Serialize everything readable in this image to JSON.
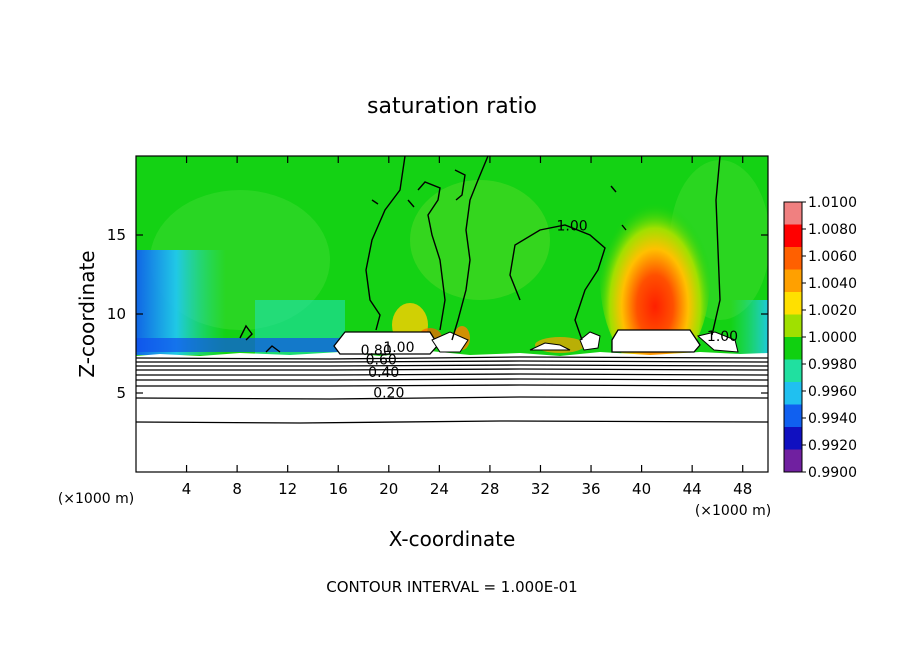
{
  "chart_data": {
    "type": "heatmap",
    "title": "saturation ratio",
    "xlabel": "X-coordinate",
    "ylabel": "Z-coordinate",
    "x_unit_left": "(×1000 m)",
    "x_unit_right": "(×1000 m)",
    "footer": "CONTOUR INTERVAL = 1.000E-01",
    "xlim": [
      0,
      50
    ],
    "ylim": [
      0,
      20
    ],
    "x_ticks": [
      4,
      8,
      12,
      16,
      20,
      24,
      28,
      32,
      36,
      40,
      44,
      48
    ],
    "y_ticks": [
      5,
      10,
      15
    ],
    "colorbar": {
      "ticks": [
        "1.0100",
        "1.0080",
        "1.0060",
        "1.0040",
        "1.0020",
        "1.0000",
        "0.9980",
        "0.9960",
        "0.9940",
        "0.9920",
        "0.9900"
      ],
      "range": [
        0.99,
        1.01
      ],
      "colors": [
        "#F08080",
        "#FF0000",
        "#FF6000",
        "#FFA000",
        "#FFE000",
        "#A0E000",
        "#10D010",
        "#20E0A0",
        "#20C0F0",
        "#1060F0",
        "#1010C0",
        "#7020A0"
      ]
    },
    "contour_labels": [
      {
        "text": "0.20",
        "x": 20,
        "y": 4.7
      },
      {
        "text": "0.40",
        "x": 19.6,
        "y": 6.0
      },
      {
        "text": "0.60",
        "x": 19.4,
        "y": 6.8
      },
      {
        "text": "0.80",
        "x": 19.0,
        "y": 7.4
      },
      {
        "text": "1.00",
        "x": 20.8,
        "y": 7.6
      },
      {
        "text": "1.00",
        "x": 34.5,
        "y": 15.3
      },
      {
        "text": "1.00",
        "x": 46.4,
        "y": 8.3
      }
    ]
  }
}
